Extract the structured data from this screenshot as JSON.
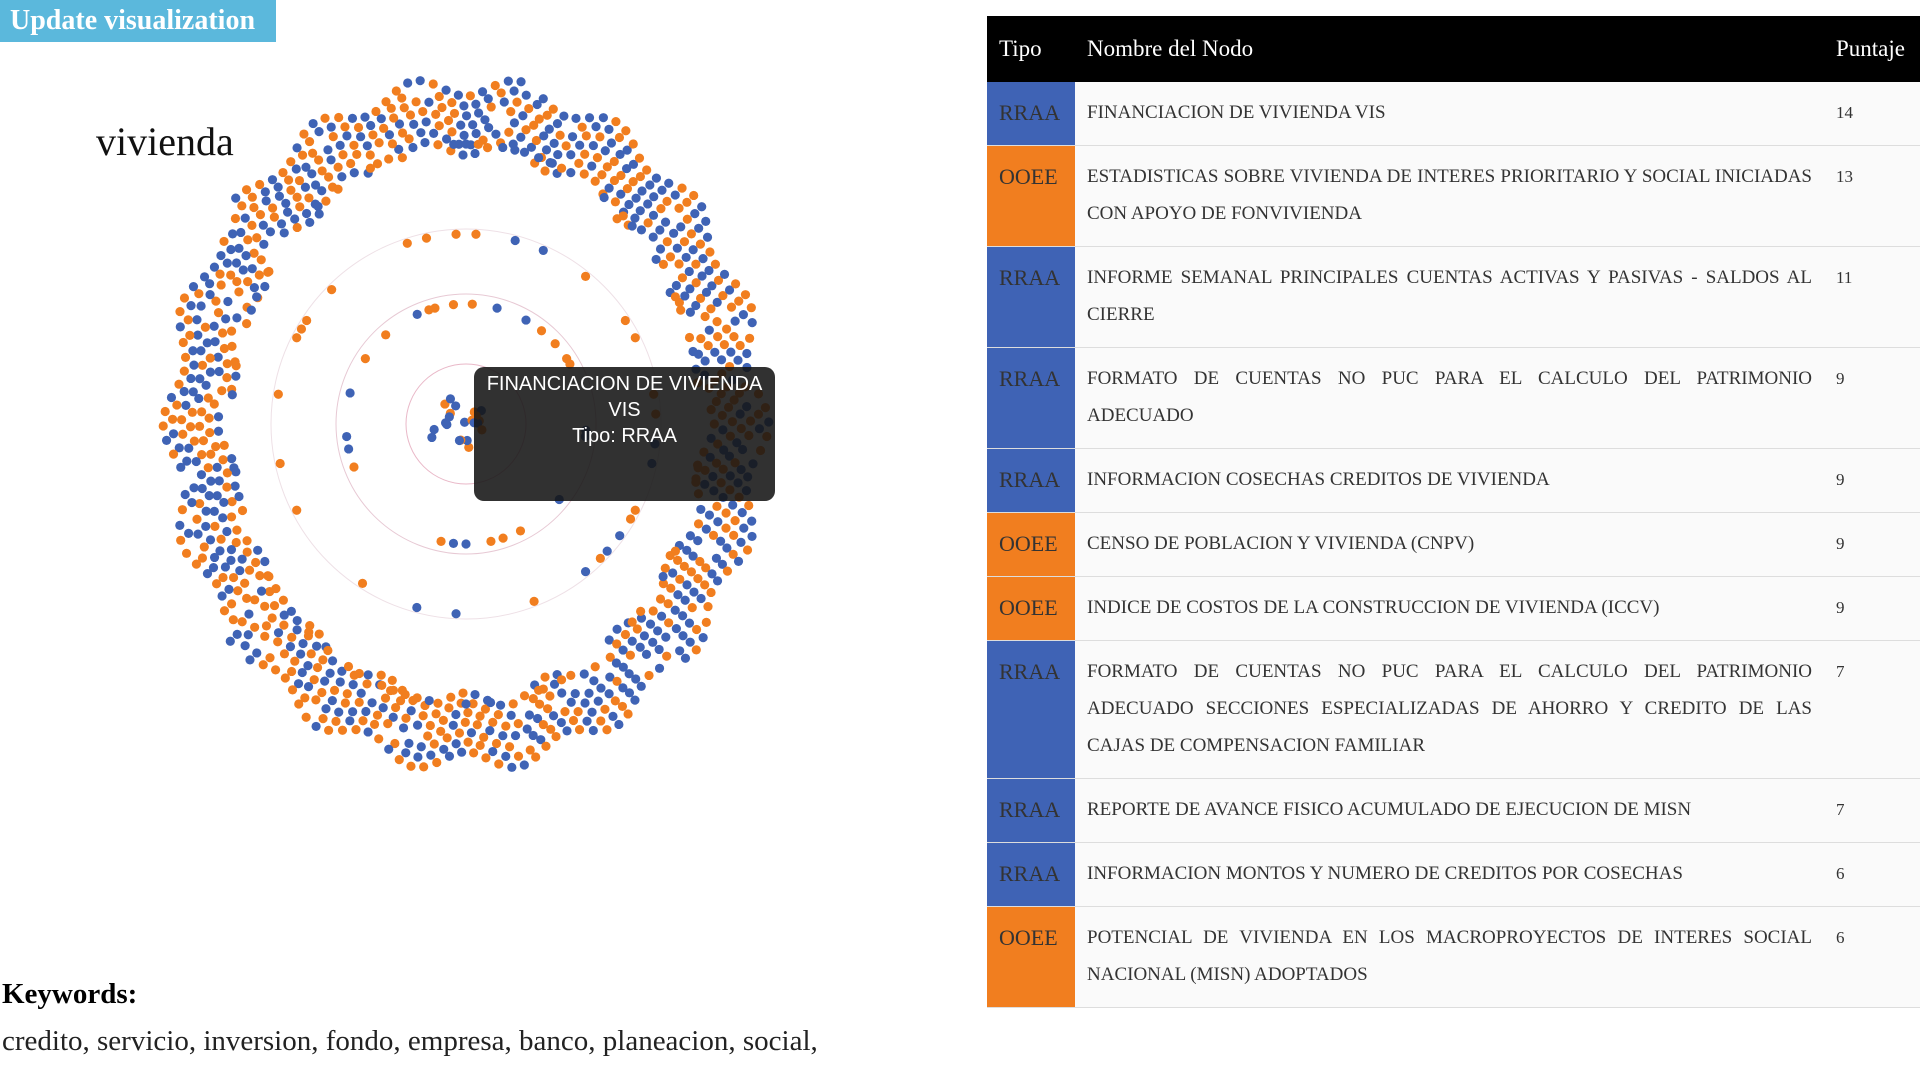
{
  "button": "Update visualization",
  "graph": {
    "title": "vivienda",
    "node_colors": [
      "#3f63b5",
      "#f17e1f"
    ],
    "tooltip": {
      "name": "FINANCIACION DE VIVIENDA VIS",
      "type": "Tipo: RRAA"
    }
  },
  "keywords": {
    "label": "Keywords:",
    "text": "credito, servicio, inversion, fondo, empresa, banco, planeacion, social,"
  },
  "table": {
    "headers": [
      "Tipo",
      "Nombre del Nodo",
      "Puntaje"
    ],
    "type_colors": {
      "RRAA": "#3f63b5",
      "OOEE": "#f17e1f"
    },
    "rows": [
      [
        "RRAA",
        "FINANCIACION DE VIVIENDA VIS",
        "14"
      ],
      [
        "OOEE",
        "ESTADISTICAS SOBRE VIVIENDA DE INTERES PRIORITARIO Y SOCIAL INICIADAS CON APOYO DE FONVIVIENDA",
        "13"
      ],
      [
        "RRAA",
        "INFORME SEMANAL PRINCIPALES CUENTAS ACTIVAS Y PASIVAS - SALDOS AL CIERRE",
        "11"
      ],
      [
        "RRAA",
        "FORMATO DE CUENTAS NO PUC PARA EL CALCULO DEL PATRIMONIO ADECUADO",
        "9"
      ],
      [
        "RRAA",
        "INFORMACION COSECHAS CREDITOS DE VIVIENDA",
        "9"
      ],
      [
        "OOEE",
        "CENSO DE POBLACION Y VIVIENDA (CNPV)",
        "9"
      ],
      [
        "OOEE",
        "INDICE DE COSTOS DE LA CONSTRUCCION DE VIVIENDA (ICCV)",
        "9"
      ],
      [
        "RRAA",
        "FORMATO DE CUENTAS NO PUC PARA EL CALCULO DEL PATRIMONIO ADECUADO SECCIONES ESPECIALIZADAS DE AHORRO Y CREDITO DE LAS CAJAS DE COMPENSACION FAMILIAR",
        "7"
      ],
      [
        "RRAA",
        "REPORTE DE AVANCE FISICO ACUMULADO DE EJECUCION DE MISN",
        "7"
      ],
      [
        "RRAA",
        "INFORMACION MONTOS Y NUMERO DE CREDITOS POR COSECHAS",
        "6"
      ],
      [
        "OOEE",
        "POTENCIAL DE VIVIENDA EN LOS MACROPROYECTOS DE INTERES SOCIAL NACIONAL (MISN) ADOPTADOS",
        "6"
      ]
    ]
  }
}
